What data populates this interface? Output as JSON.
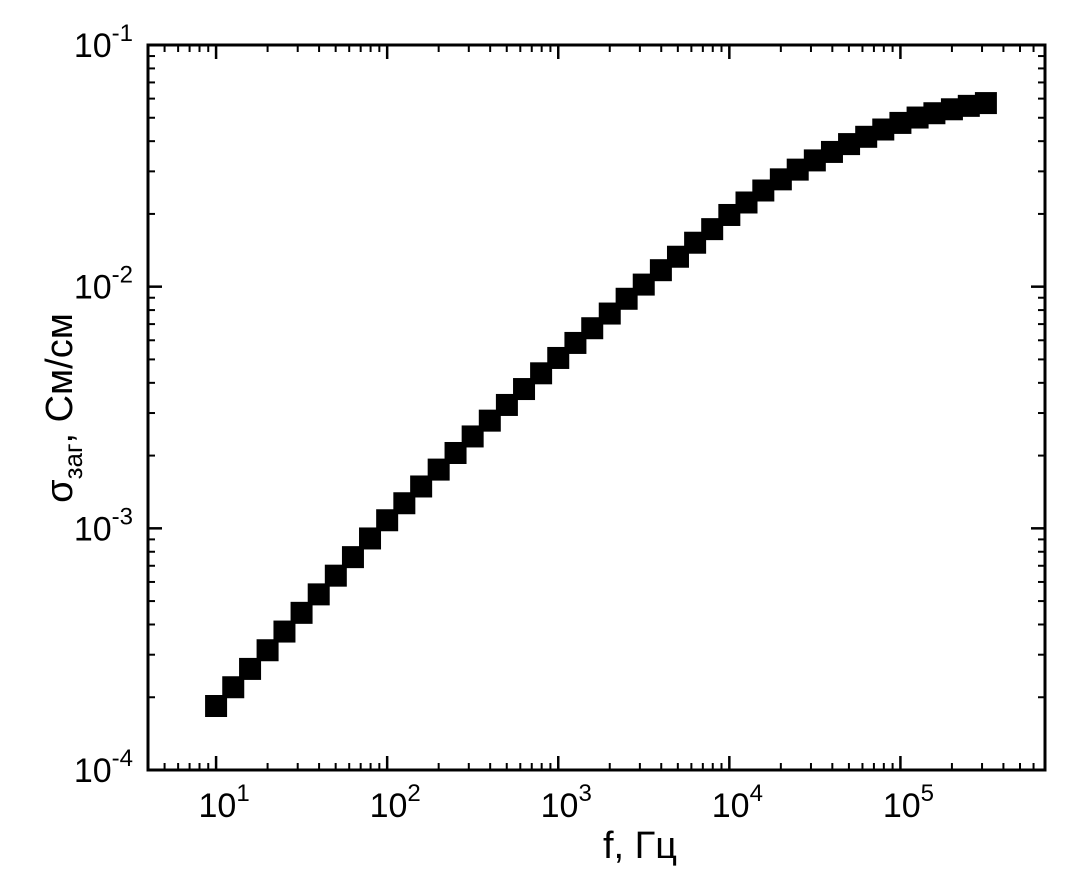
{
  "chart_data": {
    "type": "scatter",
    "x_label": "f, Гц",
    "y_label": {
      "symbol": "σ",
      "subscript": "заг",
      "unit": ", См/см"
    },
    "log_x": true,
    "log_y": true,
    "xlim": [
      4,
      700000
    ],
    "ylim": [
      0.0001,
      0.1
    ],
    "xticks": [
      {
        "value": 10,
        "label": "10^1"
      },
      {
        "value": 100,
        "label": "10^2"
      },
      {
        "value": 1000,
        "label": "10^3"
      },
      {
        "value": 10000,
        "label": "10^4"
      },
      {
        "value": 100000,
        "label": "10^5"
      }
    ],
    "yticks": [
      {
        "value": 0.0001,
        "label": "10^-4"
      },
      {
        "value": 0.001,
        "label": "10^-3"
      },
      {
        "value": 0.01,
        "label": "10^-2"
      },
      {
        "value": 0.1,
        "label": "10^-1"
      }
    ],
    "x_minor_ticks": [
      4,
      5,
      6,
      7,
      8,
      9,
      20,
      30,
      40,
      50,
      60,
      70,
      80,
      90,
      200,
      300,
      400,
      500,
      600,
      700,
      800,
      900,
      2000,
      3000,
      4000,
      5000,
      6000,
      7000,
      8000,
      9000,
      20000,
      30000,
      40000,
      50000,
      60000,
      70000,
      80000,
      90000,
      200000,
      300000,
      400000,
      500000,
      600000,
      700000
    ],
    "y_minor_ticks": [
      0.0002,
      0.0003,
      0.0004,
      0.0005,
      0.0006,
      0.0007,
      0.0008,
      0.0009,
      0.002,
      0.003,
      0.004,
      0.005,
      0.006,
      0.007,
      0.008,
      0.009,
      0.02,
      0.03,
      0.04,
      0.05,
      0.06,
      0.07,
      0.08,
      0.09
    ],
    "color": "#000000",
    "x": [
      10,
      12.6,
      15.8,
      20,
      25.1,
      31.6,
      39.8,
      50.1,
      63.1,
      79.4,
      100,
      126,
      158,
      200,
      251,
      316,
      398,
      501,
      631,
      794,
      1000,
      1260,
      1580,
      2000,
      2510,
      3160,
      3980,
      5010,
      6310,
      7940,
      10000,
      12600,
      15800,
      20000,
      25100,
      31600,
      39800,
      50100,
      63100,
      79400,
      100000,
      126000,
      158000,
      200000,
      251000,
      316000
    ],
    "values": [
      0.000184,
      0.00022,
      0.000262,
      0.000313,
      0.000374,
      0.000447,
      0.000533,
      0.000637,
      0.00076,
      0.000908,
      0.00108,
      0.00127,
      0.00149,
      0.00175,
      0.00205,
      0.0024,
      0.00279,
      0.00324,
      0.00377,
      0.00438,
      0.00507,
      0.00585,
      0.00673,
      0.00774,
      0.00891,
      0.0102,
      0.0117,
      0.0133,
      0.0152,
      0.0173,
      0.0198,
      0.0223,
      0.025,
      0.0278,
      0.0305,
      0.0333,
      0.0361,
      0.0389,
      0.0417,
      0.0447,
      0.0476,
      0.0501,
      0.0522,
      0.0542,
      0.056,
      0.0575
    ]
  }
}
